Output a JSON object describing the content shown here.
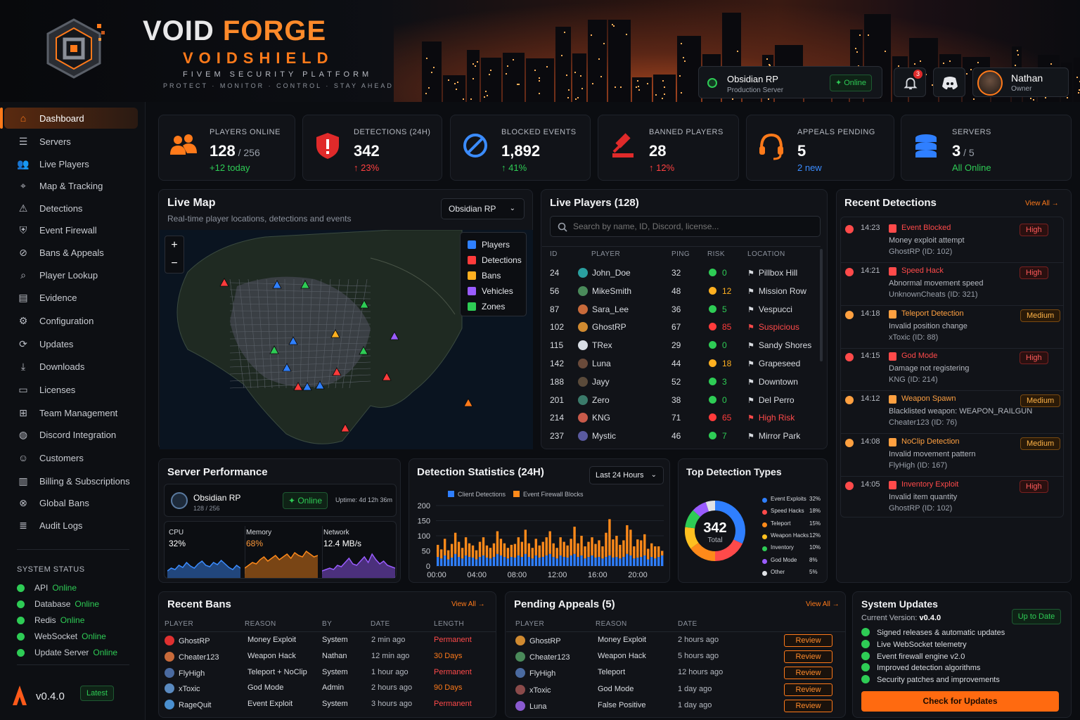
{
  "brand": {
    "name_a": "VOID",
    "name_b": "FORGE",
    "product": "VOIDSHIELD",
    "tagline": "FIVEM SECURITY PLATFORM",
    "motto": "PROTECT · MONITOR · CONTROL · STAY AHEAD"
  },
  "header": {
    "server_name": "Obsidian RP",
    "server_sub": "Production Server",
    "server_status": "Online",
    "notif_count": "3",
    "user_name": "Nathan",
    "user_role": "Owner"
  },
  "sidebar": {
    "items": [
      {
        "label": "Dashboard",
        "icon": "home-icon"
      },
      {
        "label": "Servers",
        "icon": "server-icon"
      },
      {
        "label": "Live Players",
        "icon": "users-icon"
      },
      {
        "label": "Map & Tracking",
        "icon": "map-pin-icon"
      },
      {
        "label": "Detections",
        "icon": "warning-icon"
      },
      {
        "label": "Event Firewall",
        "icon": "shield-icon"
      },
      {
        "label": "Bans & Appeals",
        "icon": "ban-icon"
      },
      {
        "label": "Player Lookup",
        "icon": "search-icon"
      },
      {
        "label": "Evidence",
        "icon": "folder-icon"
      },
      {
        "label": "Configuration",
        "icon": "gear-icon"
      },
      {
        "label": "Updates",
        "icon": "refresh-icon"
      },
      {
        "label": "Downloads",
        "icon": "download-icon"
      },
      {
        "label": "Licenses",
        "icon": "license-icon"
      },
      {
        "label": "Team Management",
        "icon": "team-icon"
      },
      {
        "label": "Discord Integration",
        "icon": "discord-icon"
      },
      {
        "label": "Customers",
        "icon": "customer-icon"
      },
      {
        "label": "Billing & Subscriptions",
        "icon": "billing-icon"
      },
      {
        "label": "Global Bans",
        "icon": "global-ban-icon"
      },
      {
        "label": "Audit Logs",
        "icon": "audit-icon"
      }
    ],
    "status_title": "SYSTEM STATUS",
    "status": [
      {
        "name": "API",
        "state": "Online"
      },
      {
        "name": "Database",
        "state": "Online"
      },
      {
        "name": "Redis",
        "state": "Online"
      },
      {
        "name": "WebSocket",
        "state": "Online"
      },
      {
        "name": "Update Server",
        "state": "Online"
      }
    ],
    "version": "v0.4.0",
    "version_tag": "Latest"
  },
  "stats": [
    {
      "label": "PLAYERS ONLINE",
      "value": "128",
      "suffix": " / 256",
      "delta": "+12 today",
      "color": "#2ecc55"
    },
    {
      "label": "DETECTIONS (24H)",
      "value": "342",
      "suffix": "",
      "delta": "↑ 23%",
      "color": "#ff4040"
    },
    {
      "label": "BLOCKED EVENTS",
      "value": "1,892",
      "suffix": "",
      "delta": "↑ 41%",
      "color": "#2ecc55"
    },
    {
      "label": "BANNED PLAYERS",
      "value": "28",
      "suffix": "",
      "delta": "↑ 12%",
      "color": "#ff4040"
    },
    {
      "label": "APPEALS PENDING",
      "value": "5",
      "suffix": "",
      "delta": "2 new",
      "color": "#3b8cff"
    },
    {
      "label": "SERVERS",
      "value": "3",
      "suffix": " / 5",
      "delta": "All Online",
      "color": "#2ecc55"
    }
  ],
  "map": {
    "title": "Live Map",
    "subtitle": "Real-time player locations, detections and events",
    "server_select": "Obsidian RP",
    "zoom_in": "+",
    "zoom_out": "−",
    "layers": [
      {
        "label": "Players",
        "color": "#2f80ff"
      },
      {
        "label": "Detections",
        "color": "#ff3b3b"
      },
      {
        "label": "Bans",
        "color": "#ffb020"
      },
      {
        "label": "Vehicles",
        "color": "#9a5cff"
      },
      {
        "label": "Zones",
        "color": "#2ecc55"
      }
    ]
  },
  "players": {
    "title": "Live Players (128)",
    "search_placeholder": "Search by name, ID, Discord, license...",
    "columns": [
      "ID",
      "PLAYER",
      "PING",
      "RISK",
      "LOCATION"
    ],
    "rows": [
      {
        "id": "24",
        "name": "John_Doe",
        "ping": "32",
        "risk": "0",
        "loc": "Pillbox Hill",
        "rc": "#2ecc55",
        "lc": "#d9dce1",
        "av": "#2aa0a0"
      },
      {
        "id": "56",
        "name": "MikeSmith",
        "ping": "48",
        "risk": "12",
        "loc": "Mission Row",
        "rc": "#ffb020",
        "lc": "#d9dce1",
        "av": "#4a8a5a"
      },
      {
        "id": "87",
        "name": "Sara_Lee",
        "ping": "36",
        "risk": "5",
        "loc": "Vespucci",
        "rc": "#2ecc55",
        "lc": "#d9dce1",
        "av": "#c86a3a"
      },
      {
        "id": "102",
        "name": "GhostRP",
        "ping": "67",
        "risk": "85",
        "loc": "Suspicious",
        "rc": "#ff3b3b",
        "lc": "#ff4a4a",
        "av": "#d08a30"
      },
      {
        "id": "115",
        "name": "TRex",
        "ping": "29",
        "risk": "0",
        "loc": "Sandy Shores",
        "rc": "#2ecc55",
        "lc": "#d9dce1",
        "av": "#d8dde4"
      },
      {
        "id": "142",
        "name": "Luna",
        "ping": "44",
        "risk": "18",
        "loc": "Grapeseed",
        "rc": "#ffb020",
        "lc": "#d9dce1",
        "av": "#6a4a3a"
      },
      {
        "id": "188",
        "name": "Jayy",
        "ping": "52",
        "risk": "3",
        "loc": "Downtown",
        "rc": "#2ecc55",
        "lc": "#d9dce1",
        "av": "#5a4a3a"
      },
      {
        "id": "201",
        "name": "Zero",
        "ping": "38",
        "risk": "0",
        "loc": "Del Perro",
        "rc": "#2ecc55",
        "lc": "#d9dce1",
        "av": "#3a7a6a"
      },
      {
        "id": "214",
        "name": "KNG",
        "ping": "71",
        "risk": "65",
        "loc": "High Risk",
        "rc": "#ff3b3b",
        "lc": "#ff4a4a",
        "av": "#c85a4a"
      },
      {
        "id": "237",
        "name": "Mystic",
        "ping": "46",
        "risk": "7",
        "loc": "Mirror Park",
        "rc": "#2ecc55",
        "lc": "#d9dce1",
        "av": "#5a5aa0"
      }
    ]
  },
  "detections": {
    "title": "Recent Detections",
    "view_all": "View All →",
    "items": [
      {
        "time": "14:23",
        "type": "Event Blocked",
        "desc": "Money exploit attempt",
        "who": "GhostRP (ID: 102)",
        "sev": "High",
        "tc": "#ff4a4a"
      },
      {
        "time": "14:21",
        "type": "Speed Hack",
        "desc": "Abnormal movement speed",
        "who": "UnknownCheats (ID: 321)",
        "sev": "High",
        "tc": "#ff4a4a"
      },
      {
        "time": "14:18",
        "type": "Teleport Detection",
        "desc": "Invalid position change",
        "who": "xToxic (ID: 88)",
        "sev": "Medium",
        "tc": "#ffa040"
      },
      {
        "time": "14:15",
        "type": "God Mode",
        "desc": "Damage not registering",
        "who": "KNG (ID: 214)",
        "sev": "High",
        "tc": "#ff4a4a"
      },
      {
        "time": "14:12",
        "type": "Weapon Spawn",
        "desc": "Blacklisted weapon: WEAPON_RAILGUN",
        "who": "Cheater123 (ID: 76)",
        "sev": "Medium",
        "tc": "#ffa040"
      },
      {
        "time": "14:08",
        "type": "NoClip Detection",
        "desc": "Invalid movement pattern",
        "who": "FlyHigh (ID: 167)",
        "sev": "Medium",
        "tc": "#ffa040"
      },
      {
        "time": "14:05",
        "type": "Inventory Exploit",
        "desc": "Invalid item quantity",
        "who": "GhostRP (ID: 102)",
        "sev": "High",
        "tc": "#ff4a4a"
      }
    ]
  },
  "performance": {
    "title": "Server Performance",
    "server": "Obsidian RP",
    "players": "128 / 256",
    "status": "Online",
    "uptime": "Uptime: 4d 12h 36m",
    "metrics": [
      {
        "label": "CPU",
        "value": "32%",
        "color": "#3b8cff"
      },
      {
        "label": "Memory",
        "value": "68%",
        "color": "#ff8a1a"
      },
      {
        "label": "Network",
        "value": "12.4 MB/s",
        "color": "#9a5cff"
      }
    ]
  },
  "chart_data": [
    {
      "type": "bar",
      "title": "Detection Statistics (24H)",
      "range_select": "Last 24 Hours",
      "x_ticks": [
        "00:00",
        "04:00",
        "08:00",
        "12:00",
        "16:00",
        "20:00"
      ],
      "ylim": [
        0,
        200
      ],
      "y_ticks": [
        "200",
        "150",
        "100",
        "50",
        "0"
      ],
      "series": [
        {
          "name": "Client Detections",
          "color": "#2f7fff",
          "values": [
            30,
            25,
            35,
            22,
            28,
            40,
            30,
            25,
            35,
            30,
            28,
            22,
            30,
            35,
            28,
            25,
            30,
            40,
            35,
            30,
            25,
            30,
            28,
            35,
            30,
            40,
            30,
            25,
            35,
            28,
            30,
            35,
            40,
            30,
            25,
            35,
            30,
            28,
            35,
            40,
            30,
            35,
            25,
            30,
            35,
            28,
            30,
            25,
            30,
            35,
            28,
            30,
            25,
            30,
            40,
            35,
            25,
            28,
            30,
            35,
            22,
            30,
            25,
            30,
            35
          ]
        },
        {
          "name": "Event Firewall Blocks",
          "color": "#ff8a1a",
          "values": [
            40,
            30,
            55,
            30,
            45,
            70,
            50,
            35,
            60,
            45,
            40,
            30,
            50,
            60,
            40,
            35,
            45,
            75,
            55,
            45,
            35,
            40,
            45,
            60,
            50,
            80,
            45,
            35,
            55,
            40,
            50,
            60,
            75,
            45,
            35,
            60,
            50,
            40,
            55,
            90,
            45,
            65,
            40,
            50,
            60,
            45,
            55,
            40,
            80,
            120,
            60,
            70,
            45,
            55,
            95,
            85,
            40,
            60,
            55,
            70,
            35,
            45,
            40,
            35,
            15
          ]
        }
      ]
    },
    {
      "type": "pie",
      "title": "Top Detection Types",
      "center_value": "342",
      "center_label": "Total",
      "categories": [
        "Event Exploits",
        "Speed Hacks",
        "Teleport",
        "Weapon Hacks",
        "Inventory",
        "God Mode",
        "Other"
      ],
      "values": [
        32,
        18,
        15,
        12,
        10,
        8,
        5
      ],
      "labels": [
        "32%",
        "18%",
        "15%",
        "12%",
        "10%",
        "8%",
        "5%"
      ],
      "colors": [
        "#2f7fff",
        "#ff4a4a",
        "#ff8a1a",
        "#ffc020",
        "#2ecc55",
        "#9a5cff",
        "#e0e2e6"
      ]
    }
  ],
  "bans": {
    "title": "Recent Bans",
    "view_all": "View All →",
    "columns": [
      "PLAYER",
      "REASON",
      "BY",
      "DATE",
      "LENGTH"
    ],
    "rows": [
      {
        "player": "GhostRP",
        "reason": "Money Exploit",
        "by": "System",
        "date": "2 min ago",
        "len": "Permanent",
        "lc": "#ff4a4a",
        "av": "#e03030"
      },
      {
        "player": "Cheater123",
        "reason": "Weapon Hack",
        "by": "Nathan",
        "date": "12 min ago",
        "len": "30 Days",
        "lc": "#ff7a1a",
        "av": "#c86a3a"
      },
      {
        "player": "FlyHigh",
        "reason": "Teleport + NoClip",
        "by": "System",
        "date": "1 hour ago",
        "len": "Permanent",
        "lc": "#ff4a4a",
        "av": "#4a6aa0"
      },
      {
        "player": "xToxic",
        "reason": "God Mode",
        "by": "Admin",
        "date": "2 hours ago",
        "len": "90 Days",
        "lc": "#ff7a1a",
        "av": "#5a8ac0"
      },
      {
        "player": "RageQuit",
        "reason": "Event Exploit",
        "by": "System",
        "date": "3 hours ago",
        "len": "Permanent",
        "lc": "#ff4a4a",
        "av": "#4a90d0"
      }
    ]
  },
  "appeals": {
    "title": "Pending Appeals (5)",
    "view_all": "View All →",
    "columns": [
      "PLAYER",
      "REASON",
      "DATE"
    ],
    "action": "Review",
    "rows": [
      {
        "player": "GhostRP",
        "reason": "Money Exploit",
        "date": "2 hours ago",
        "av": "#d08a30"
      },
      {
        "player": "Cheater123",
        "reason": "Weapon Hack",
        "date": "5 hours ago",
        "av": "#4a8a5a"
      },
      {
        "player": "FlyHigh",
        "reason": "Teleport",
        "date": "12 hours ago",
        "av": "#4a6aa0"
      },
      {
        "player": "xToxic",
        "reason": "God Mode",
        "date": "1 day ago",
        "av": "#8a4a4a"
      },
      {
        "player": "Luna",
        "reason": "False Positive",
        "date": "1 day ago",
        "av": "#8a5ad0"
      }
    ]
  },
  "updates": {
    "title": "System Updates",
    "version_label": "Current Version:",
    "version": "v0.4.0",
    "status": "Up to Date",
    "button": "Check for Updates",
    "items": [
      "Signed releases & automatic updates",
      "Live WebSocket telemetry",
      "Event firewall engine v2.0",
      "Improved detection algorithms",
      "Security patches and improvements"
    ]
  }
}
